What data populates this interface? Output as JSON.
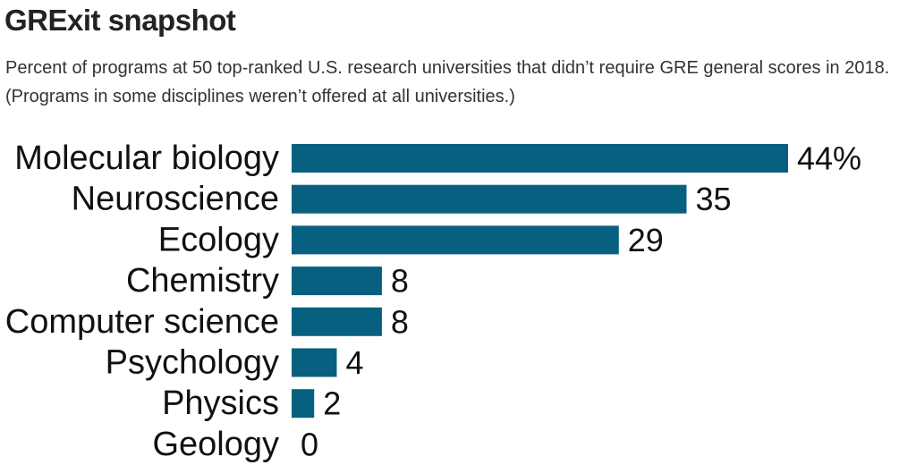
{
  "chart_data": {
    "type": "bar",
    "orientation": "horizontal",
    "title": "GRExit snapshot",
    "subtitle": "Percent of programs at 50 top-ranked U.S. research universities that didn’t require GRE general scores in 2018. (Programs in some disciplines weren’t offered at all universities.)",
    "categories": [
      "Molecular biology",
      "Neuroscience",
      "Ecology",
      "Chemistry",
      "Computer science",
      "Psychology",
      "Physics",
      "Geology"
    ],
    "values": [
      44,
      35,
      29,
      8,
      8,
      4,
      2,
      0
    ],
    "value_labels": [
      "44%",
      "35",
      "29",
      "8",
      "8",
      "4",
      "2",
      "0"
    ],
    "bar_color": "#07607f",
    "xlim": [
      0,
      44
    ],
    "grid": false,
    "legend": "none"
  }
}
